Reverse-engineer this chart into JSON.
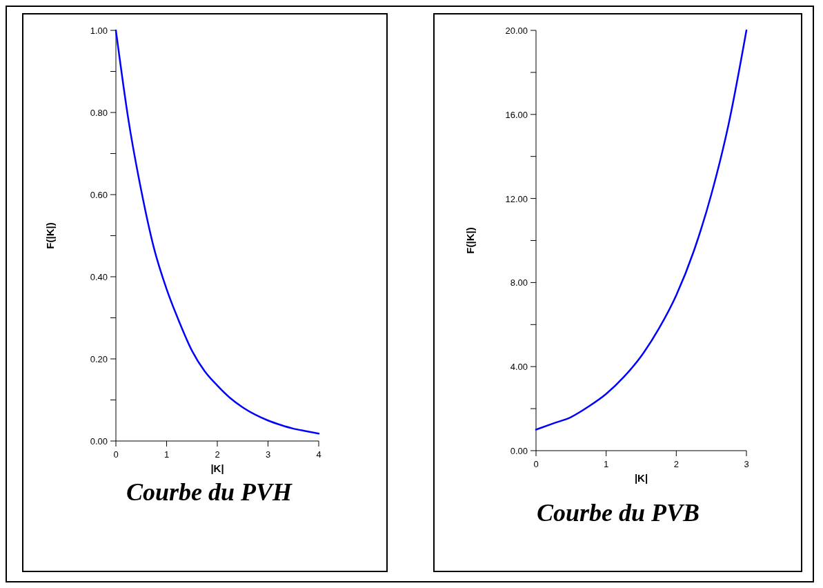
{
  "chart_data": [
    {
      "type": "line",
      "title": "Courbe du PVH",
      "xlabel": "|K|",
      "ylabel": "F(|K|)",
      "x": [
        0,
        0.25,
        0.5,
        0.75,
        1,
        1.25,
        1.5,
        1.75,
        2,
        2.25,
        2.5,
        2.75,
        3,
        3.25,
        3.5,
        3.75,
        4
      ],
      "series": [
        {
          "color": "#0000ff",
          "values": [
            1.0,
            0.78,
            0.61,
            0.47,
            0.37,
            0.29,
            0.22,
            0.17,
            0.135,
            0.105,
            0.082,
            0.064,
            0.05,
            0.039,
            0.03,
            0.024,
            0.018
          ]
        }
      ],
      "xlim": [
        0,
        4
      ],
      "xticks": [
        0,
        1,
        2,
        3,
        4
      ],
      "ylim": [
        0,
        1
      ],
      "yticks": [
        {
          "value": 0,
          "label": "0.00"
        },
        {
          "value": 0.1,
          "label": null
        },
        {
          "value": 0.2,
          "label": "0.20"
        },
        {
          "value": 0.3,
          "label": null
        },
        {
          "value": 0.4,
          "label": "0.40"
        },
        {
          "value": 0.5,
          "label": null
        },
        {
          "value": 0.6,
          "label": "0.60"
        },
        {
          "value": 0.7,
          "label": null
        },
        {
          "value": 0.8,
          "label": "0.80"
        },
        {
          "value": 0.9,
          "label": null
        },
        {
          "value": 1,
          "label": "1.00"
        }
      ],
      "grid": false,
      "marker": "none",
      "line_style": "solid"
    },
    {
      "type": "line",
      "title": "Courbe du PVB",
      "xlabel": "|K|",
      "ylabel": "F(|K|)",
      "x": [
        0,
        0.25,
        0.5,
        0.75,
        1,
        1.25,
        1.5,
        1.75,
        2,
        2.25,
        2.5,
        2.75,
        3
      ],
      "series": [
        {
          "color": "#0000ff",
          "values": [
            1.0,
            1.3,
            1.6,
            2.1,
            2.7,
            3.5,
            4.5,
            5.8,
            7.4,
            9.5,
            12.2,
            15.6,
            20.0
          ]
        }
      ],
      "xlim": [
        0,
        3
      ],
      "xticks": [
        0,
        1,
        2,
        3
      ],
      "ylim": [
        0,
        20
      ],
      "yticks": [
        {
          "value": 0,
          "label": "0.00"
        },
        {
          "value": 2,
          "label": null
        },
        {
          "value": 4,
          "label": "4.00"
        },
        {
          "value": 6,
          "label": null
        },
        {
          "value": 8,
          "label": "8.00"
        },
        {
          "value": 10,
          "label": null
        },
        {
          "value": 12,
          "label": "12.00"
        },
        {
          "value": 14,
          "label": null
        },
        {
          "value": 16,
          "label": "16.00"
        },
        {
          "value": 18,
          "label": null
        },
        {
          "value": 20,
          "label": "20.00"
        }
      ],
      "grid": false,
      "marker": "none",
      "line_style": "solid"
    }
  ]
}
